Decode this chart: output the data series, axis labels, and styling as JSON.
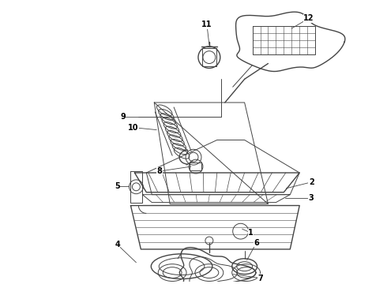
{
  "bg_color": "#ffffff",
  "line_color": "#444444",
  "label_color": "#000000",
  "fig_w": 4.9,
  "fig_h": 3.6,
  "dpi": 100
}
